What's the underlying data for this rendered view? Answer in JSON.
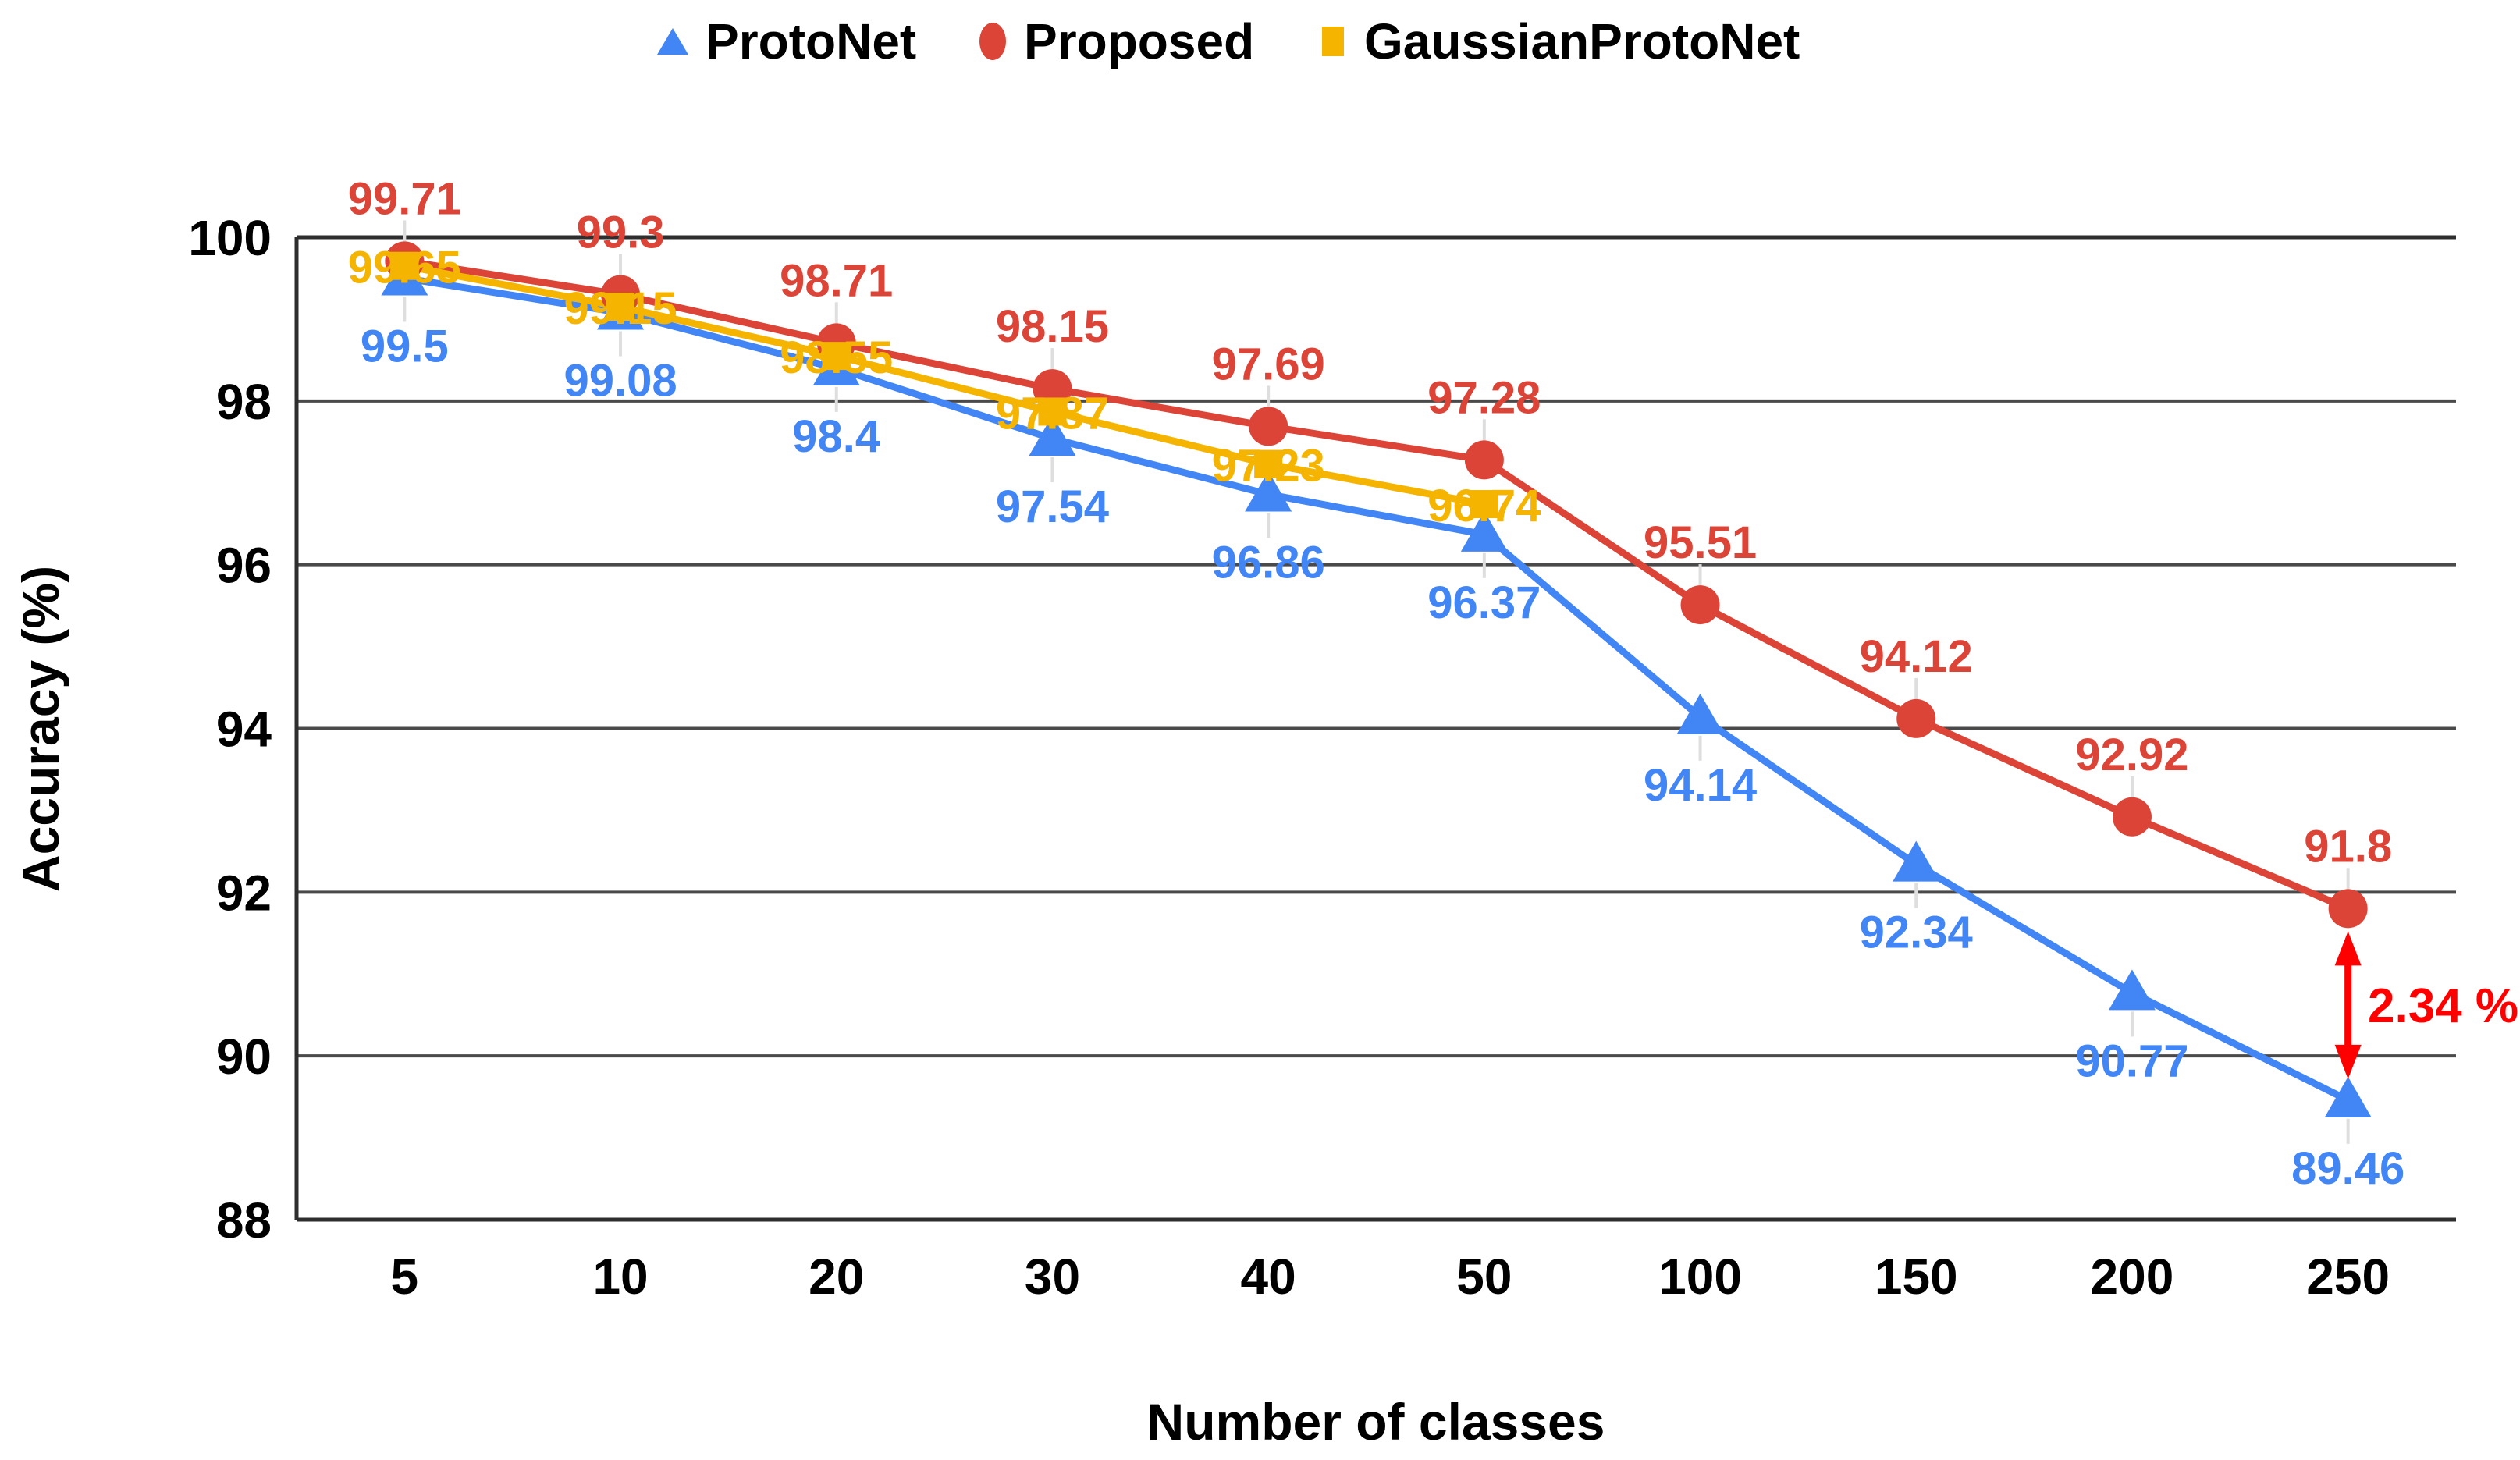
{
  "chart_data": {
    "type": "line",
    "title": "",
    "xlabel": "Number of classes",
    "ylabel": "Accuracy (%)",
    "categories": [
      5,
      10,
      20,
      30,
      40,
      50,
      100,
      150,
      200,
      250
    ],
    "ylim": [
      88,
      100
    ],
    "yticks": [
      88,
      90,
      92,
      94,
      96,
      98,
      100
    ],
    "grid": "horizontal",
    "legend_position": "top",
    "series": [
      {
        "name": "ProtoNet",
        "color": "#4285F4",
        "marker": "triangle",
        "values": [
          99.5,
          99.08,
          98.4,
          97.54,
          96.86,
          96.37,
          94.14,
          92.34,
          90.77,
          89.46
        ],
        "labels": [
          "99.5",
          "99.08",
          "98.4",
          "97.54",
          "96.86",
          "96.37",
          "94.14",
          "92.34",
          "90.77",
          "89.46"
        ],
        "label_side": "below"
      },
      {
        "name": "Proposed",
        "color": "#DB4437",
        "marker": "circle",
        "values": [
          99.71,
          99.3,
          98.71,
          98.15,
          97.69,
          97.28,
          95.51,
          94.12,
          92.92,
          91.8
        ],
        "labels": [
          "99.71",
          "99.3",
          "98.71",
          "98.15",
          "97.69",
          "97.28",
          "95.51",
          "94.12",
          "92.92",
          "91.8"
        ],
        "label_side": "above"
      },
      {
        "name": "GaussianProtoNet",
        "color": "#F4B400",
        "marker": "square",
        "values": [
          99.65,
          99.15,
          98.55,
          97.87,
          97.23,
          96.74
        ],
        "labels": [
          "99.65",
          "99.15",
          "98.55",
          "97.87",
          "97.23",
          "96.74"
        ],
        "label_side": "on"
      }
    ],
    "annotation": {
      "label": "2.34 %",
      "color": "#FF0000",
      "category": 250,
      "from_value": 91.8,
      "to_value": 89.46
    }
  },
  "legend": {
    "items": [
      {
        "label": "ProtoNet",
        "marker": "triangle-marker"
      },
      {
        "label": "Proposed",
        "marker": "circle-marker"
      },
      {
        "label": "GaussianProtoNet",
        "marker": "square-marker"
      }
    ]
  }
}
